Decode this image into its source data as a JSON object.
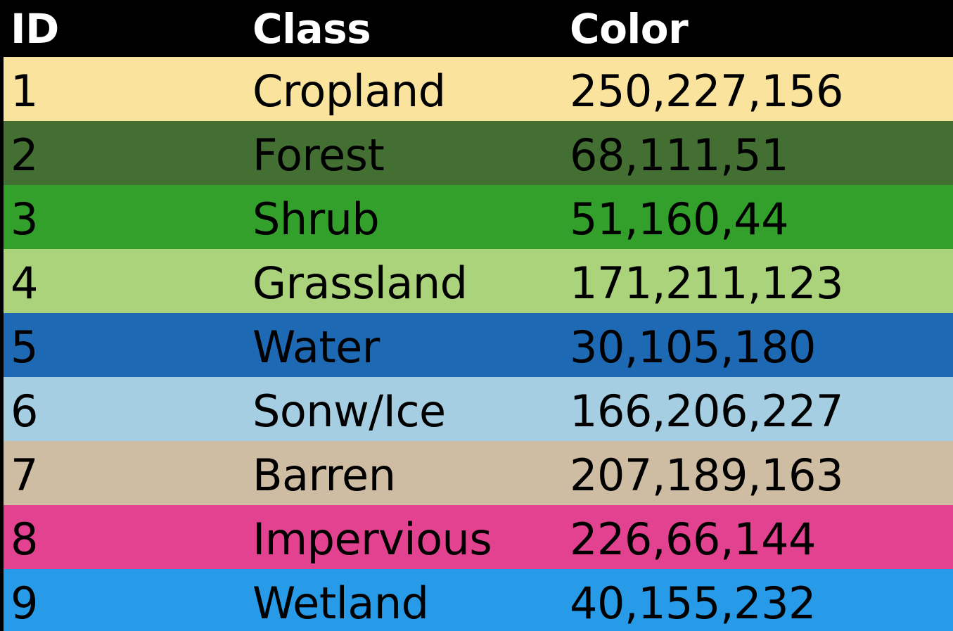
{
  "headers": {
    "id": "ID",
    "class": "Class",
    "color": "Color"
  },
  "rows": [
    {
      "id": "1",
      "class": "Cropland",
      "color": "250,227,156",
      "bg": "#fae39c"
    },
    {
      "id": "2",
      "class": "Forest",
      "color": "68,111,51",
      "bg": "#446f33"
    },
    {
      "id": "3",
      "class": "Shrub",
      "color": "51,160,44",
      "bg": "#33a02c"
    },
    {
      "id": "4",
      "class": "Grassland",
      "color": "171,211,123",
      "bg": "#abd37b"
    },
    {
      "id": "5",
      "class": "Water",
      "color": "30,105,180",
      "bg": "#1e69b4"
    },
    {
      "id": "6",
      "class": "Sonw/Ice",
      "color": "166,206,227",
      "bg": "#a6cee3"
    },
    {
      "id": "7",
      "class": "Barren",
      "color": "207,189,163",
      "bg": "#cfbda3"
    },
    {
      "id": "8",
      "class": "Impervious",
      "color": "226,66,144",
      "bg": "#e24290"
    },
    {
      "id": "9",
      "class": "Wetland",
      "color": "40,155,232",
      "bg": "#289be8"
    }
  ]
}
